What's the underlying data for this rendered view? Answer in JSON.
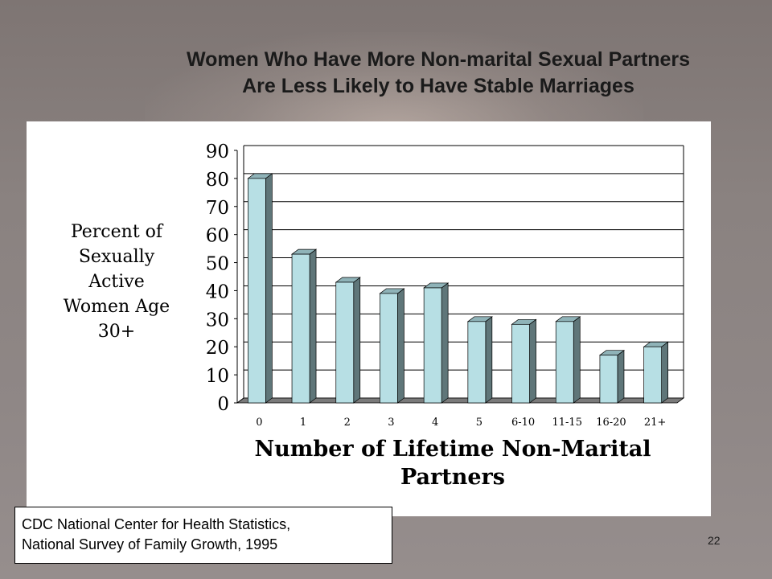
{
  "slide": {
    "title_line1": "Women Who Have More Non-marital Sexual Partners",
    "title_line2": "Are Less Likely to Have Stable Marriages",
    "source_line1": "CDC National Center for Health Statistics,",
    "source_line2": "National Survey of Family Growth, 1995",
    "page_number": "22"
  },
  "chart_data": {
    "type": "bar",
    "categories": [
      "0",
      "1",
      "2",
      "3",
      "4",
      "5",
      "6-10",
      "11-15",
      "16-20",
      "21+"
    ],
    "values": [
      80,
      53,
      43,
      39,
      41,
      29,
      28,
      29,
      17,
      20
    ],
    "ylim": [
      0,
      90
    ],
    "yticks": [
      "0",
      "10",
      "20",
      "30",
      "40",
      "50",
      "60",
      "70",
      "80",
      "90"
    ],
    "ylabel_lines": [
      "Percent of",
      "Sexually",
      "Active",
      "Women Age",
      "30+"
    ],
    "xlabel_lines": [
      "Number of Lifetime Non-Marital",
      "Partners"
    ],
    "grid": true,
    "colors": {
      "bar_front": "#b7dfe4",
      "bar_top": "#8fb3b8",
      "bar_side": "#5f7679",
      "floor": "#7a7a7a"
    }
  }
}
